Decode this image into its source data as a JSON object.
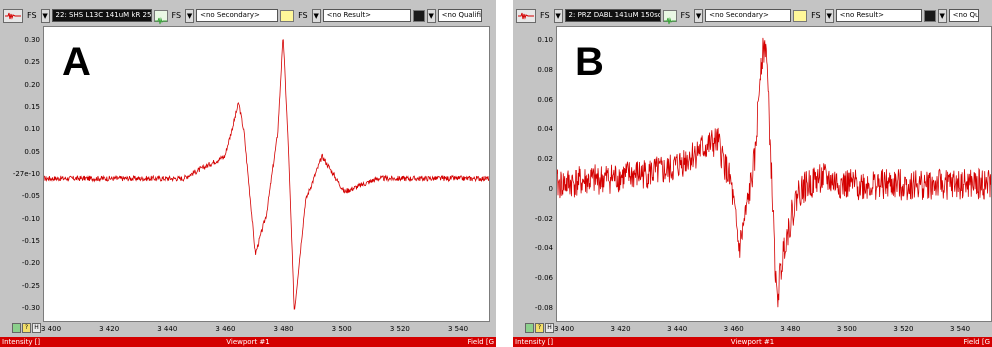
{
  "panels": [
    {
      "label": "A",
      "toolbar": {
        "primary": "22: SHS L13C 141uM kR 25",
        "secondary": "<no Secondary>",
        "result": "<no Result>",
        "qualifier": "<no Qualifier>",
        "fs": "FS"
      },
      "yticks": [
        "0.30",
        "0.25",
        "0.20",
        "0.15",
        "0.10",
        "0.05",
        "-27e-10",
        "-0.05",
        "-0.10",
        "-0.15",
        "-0.20",
        "-0.25",
        "-0.30"
      ],
      "xticks": [
        "3 400",
        "3 420",
        "3 440",
        "3 460",
        "3 480",
        "3 500",
        "3 520",
        "3 540"
      ],
      "status": {
        "left": "Intensity []",
        "middle": "Viewport #1",
        "right": "Field [G"
      },
      "buttons": [
        "",
        "?",
        "H"
      ]
    },
    {
      "label": "B",
      "toolbar": {
        "primary": "2: PRZ DABL 141uM 150sc",
        "secondary": "<no Secondary>",
        "result": "<no Result>",
        "qualifier": "<no Qua",
        "fs": "FS"
      },
      "yticks": [
        "0.10",
        "0.08",
        "0.06",
        "0.04",
        "0.02",
        "0",
        "-0.02",
        "-0.04",
        "-0.06",
        "-0.08"
      ],
      "xticks": [
        "3 400",
        "3 420",
        "3 440",
        "3 460",
        "3 480",
        "3 500",
        "3 520",
        "3 540"
      ],
      "status": {
        "left": "Intensity []",
        "middle": "Viewport #1",
        "right": "Field [G"
      },
      "buttons": [
        "",
        "?",
        "H"
      ]
    }
  ],
  "colors": {
    "trace": "#d40000",
    "status": "#d40000"
  },
  "chart_data": [
    {
      "type": "line",
      "title": "A",
      "xlim": [
        3390,
        3550
      ],
      "ylim": [
        -0.32,
        0.34
      ],
      "x": [
        3390,
        3440,
        3455,
        3458,
        3460,
        3462,
        3466,
        3470,
        3474,
        3476,
        3478,
        3480,
        3484,
        3490,
        3498,
        3510,
        3550
      ],
      "y": [
        0,
        0,
        0.05,
        0.12,
        0.17,
        0.1,
        -0.17,
        -0.08,
        0.1,
        0.32,
        0.05,
        -0.3,
        -0.05,
        0.05,
        -0.03,
        0,
        0
      ]
    },
    {
      "type": "line",
      "title": "B",
      "xlim": [
        3398,
        3560
      ],
      "ylim": [
        -0.095,
        0.11
      ],
      "x": [
        3398,
        3440,
        3452,
        3458,
        3463,
        3466,
        3469,
        3472,
        3474,
        3476,
        3478,
        3480,
        3483,
        3488,
        3496,
        3505,
        3560
      ],
      "y": [
        0,
        0.01,
        0.025,
        0.03,
        0,
        -0.045,
        -0.015,
        0.02,
        0.085,
        0.1,
        0.01,
        -0.082,
        -0.04,
        -0.005,
        0.005,
        0,
        0
      ]
    }
  ]
}
